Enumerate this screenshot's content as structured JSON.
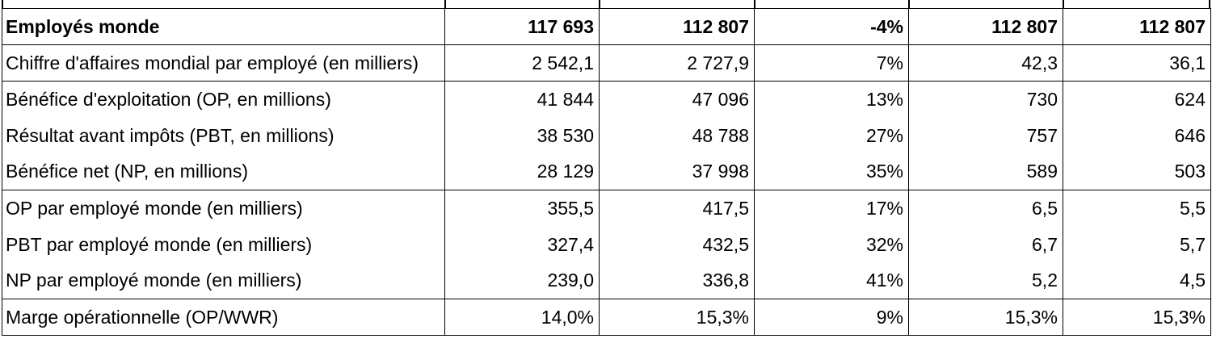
{
  "table": {
    "rows": [
      {
        "label": "Employés monde",
        "values": [
          "117 693",
          "112 807",
          "-4%",
          "112 807",
          "112 807"
        ],
        "bold": true,
        "top_border": true
      },
      {
        "label": "Chiffre d'affaires mondial par employé (en milliers)",
        "values": [
          "2 542,1",
          "2 727,9",
          "7%",
          "42,3",
          "36,1"
        ],
        "bold": false,
        "top_border": true
      },
      {
        "label": "Bénéfice d'exploitation (OP, en millions)",
        "values": [
          "41 844",
          "47 096",
          "13%",
          "730",
          "624"
        ],
        "bold": false,
        "top_border": true
      },
      {
        "label": "Résultat avant impôts (PBT, en millions)",
        "values": [
          "38 530",
          "48 788",
          "27%",
          "757",
          "646"
        ],
        "bold": false,
        "top_border": false
      },
      {
        "label": "Bénéfice net (NP, en millions)",
        "values": [
          "28 129",
          "37 998",
          "35%",
          "589",
          "503"
        ],
        "bold": false,
        "top_border": false
      },
      {
        "label": "OP par employé monde (en milliers)",
        "values": [
          "355,5",
          "417,5",
          "17%",
          "6,5",
          "5,5"
        ],
        "bold": false,
        "top_border": true
      },
      {
        "label": "PBT par employé monde (en milliers)",
        "values": [
          "327,4",
          "432,5",
          "32%",
          "6,7",
          "5,7"
        ],
        "bold": false,
        "top_border": false
      },
      {
        "label": "NP par employé monde (en milliers)",
        "values": [
          "239,0",
          "336,8",
          "41%",
          "5,2",
          "4,5"
        ],
        "bold": false,
        "top_border": false
      },
      {
        "label": "Marge opérationnelle (OP/WWR)",
        "values": [
          "14,0%",
          "15,3%",
          "9%",
          "15,3%",
          "15,3%"
        ],
        "bold": false,
        "top_border": true
      }
    ]
  }
}
